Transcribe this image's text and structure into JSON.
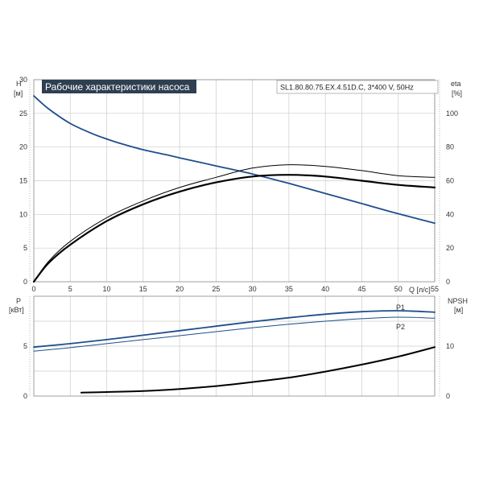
{
  "title": "Рабочие характеристики насоса",
  "model": "SL1.80.80.75.EX.4.51D.C, 3*400 V, 50Hz",
  "colors": {
    "blue": "#1f4e8c",
    "black": "#000000",
    "grid": "#cccccc",
    "title_bg": "#2f3f52"
  },
  "chart_data": [
    {
      "type": "line",
      "title": "Рабочие характеристики насоса",
      "xlabel": "Q [л/с]",
      "xlim": [
        0,
        55
      ],
      "x_ticks": [
        0,
        5,
        10,
        15,
        20,
        25,
        30,
        35,
        40,
        45,
        50,
        55
      ],
      "y_left": {
        "label": "H",
        "unit": "[м]",
        "lim": [
          0,
          30
        ],
        "ticks": [
          0,
          5,
          10,
          15,
          20,
          25,
          30
        ]
      },
      "y_right": {
        "label": "eta",
        "unit": "[%]",
        "lim": [
          0,
          120
        ],
        "ticks": [
          0,
          20,
          40,
          60,
          80,
          100
        ]
      },
      "series": [
        {
          "axis": "left",
          "color": "#1f4e8c",
          "width": 1.8,
          "x": [
            0,
            2,
            5,
            8,
            10,
            12,
            15,
            18,
            20,
            25,
            30,
            35,
            40,
            45,
            50,
            55
          ],
          "y": [
            27.6,
            25.7,
            23.5,
            22.0,
            21.2,
            20.5,
            19.6,
            18.9,
            18.4,
            17.2,
            16.0,
            14.6,
            13.1,
            11.6,
            10.1,
            8.7
          ]
        },
        {
          "axis": "right",
          "color": "#000000",
          "width": 1,
          "x": [
            0,
            2,
            5,
            10,
            15,
            20,
            25,
            30,
            35,
            40,
            45,
            50,
            55
          ],
          "y": [
            0,
            12,
            24,
            38,
            48,
            56,
            62,
            67.5,
            69.5,
            68.5,
            66,
            63,
            62
          ]
        },
        {
          "axis": "right",
          "color": "#000000",
          "width": 2.2,
          "x": [
            0,
            2,
            5,
            10,
            15,
            20,
            25,
            30,
            35,
            40,
            45,
            50,
            55
          ],
          "y": [
            0,
            11,
            22,
            36,
            46,
            53.5,
            59,
            62.5,
            63.5,
            62.5,
            60,
            57.5,
            56
          ]
        }
      ]
    },
    {
      "type": "line",
      "xlim": [
        0,
        55
      ],
      "y_left": {
        "label": "P",
        "unit": "[кВт]",
        "lim": [
          0,
          10
        ],
        "ticks": [
          0,
          5
        ]
      },
      "y_right": {
        "label": "NPSH",
        "unit": "[м]",
        "lim": [
          0,
          20
        ],
        "ticks": [
          0,
          10
        ]
      },
      "series": [
        {
          "name": "P1",
          "axis": "left",
          "color": "#1f4e8c",
          "width": 1.8,
          "x": [
            0,
            5,
            10,
            15,
            20,
            25,
            30,
            35,
            40,
            45,
            50,
            55
          ],
          "y": [
            4.9,
            5.25,
            5.65,
            6.1,
            6.55,
            7.0,
            7.45,
            7.85,
            8.2,
            8.45,
            8.55,
            8.4
          ]
        },
        {
          "name": "P2",
          "axis": "left",
          "color": "#1f4e8c",
          "width": 1,
          "x": [
            0,
            5,
            10,
            15,
            20,
            25,
            30,
            35,
            40,
            45,
            50,
            55
          ],
          "y": [
            4.5,
            4.85,
            5.25,
            5.65,
            6.05,
            6.45,
            6.85,
            7.2,
            7.5,
            7.75,
            7.9,
            7.8
          ]
        },
        {
          "axis": "right",
          "color": "#000000",
          "width": 2,
          "x": [
            6.5,
            10,
            15,
            20,
            25,
            30,
            35,
            40,
            45,
            50,
            55
          ],
          "y": [
            0.7,
            0.8,
            1.0,
            1.4,
            2.0,
            2.8,
            3.7,
            4.9,
            6.3,
            7.9,
            9.8
          ]
        }
      ]
    }
  ]
}
